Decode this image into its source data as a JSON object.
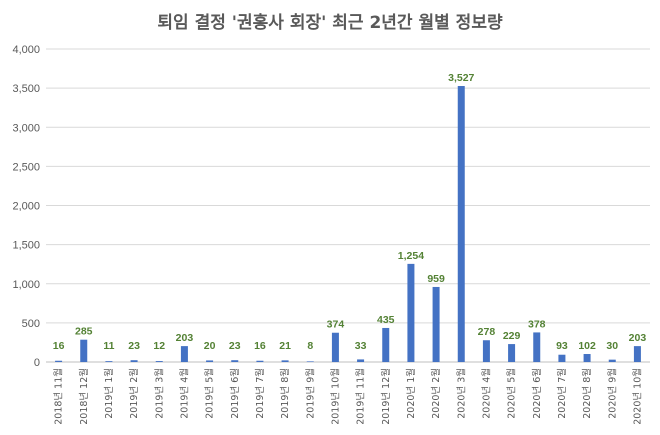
{
  "chart_data": {
    "type": "bar",
    "title": "퇴임 결정 '권홍사 회장' 최근 2년간 월별 정보량",
    "categories": [
      "2018년 11월",
      "2018년 12월",
      "2019년 1월",
      "2019년 2월",
      "2019년 3월",
      "2019년 4월",
      "2019년 5월",
      "2019년 6월",
      "2019년 7월",
      "2019년 8월",
      "2019년 9월",
      "2019년 10월",
      "2019년 11월",
      "2019년 12월",
      "2020년 1월",
      "2020년 2월",
      "2020년 3월",
      "2020년 4월",
      "2020년 5월",
      "2020년 6월",
      "2020년 7월",
      "2020년 8월",
      "2020년 9월",
      "2020년 10월"
    ],
    "values": [
      16,
      285,
      11,
      23,
      12,
      203,
      20,
      23,
      16,
      21,
      8,
      374,
      33,
      435,
      1254,
      959,
      3527,
      278,
      229,
      378,
      93,
      102,
      30,
      203
    ],
    "data_labels": [
      "16",
      "285",
      "11",
      "23",
      "12",
      "203",
      "20",
      "23",
      "16",
      "21",
      "8",
      "374",
      "33",
      "435",
      "1,254",
      "959",
      "3,527",
      "278",
      "229",
      "378",
      "93",
      "102",
      "30",
      "203"
    ],
    "ylim": [
      0,
      4000
    ],
    "yticks": [
      "0",
      "500",
      "1,000",
      "1,500",
      "2,000",
      "2,500",
      "3,000",
      "3,500",
      "4,000"
    ],
    "grid": true,
    "colors": {
      "bar": "#4472C4",
      "label": "#548235",
      "grid": "#D9D9D9",
      "text": "#595959"
    }
  }
}
